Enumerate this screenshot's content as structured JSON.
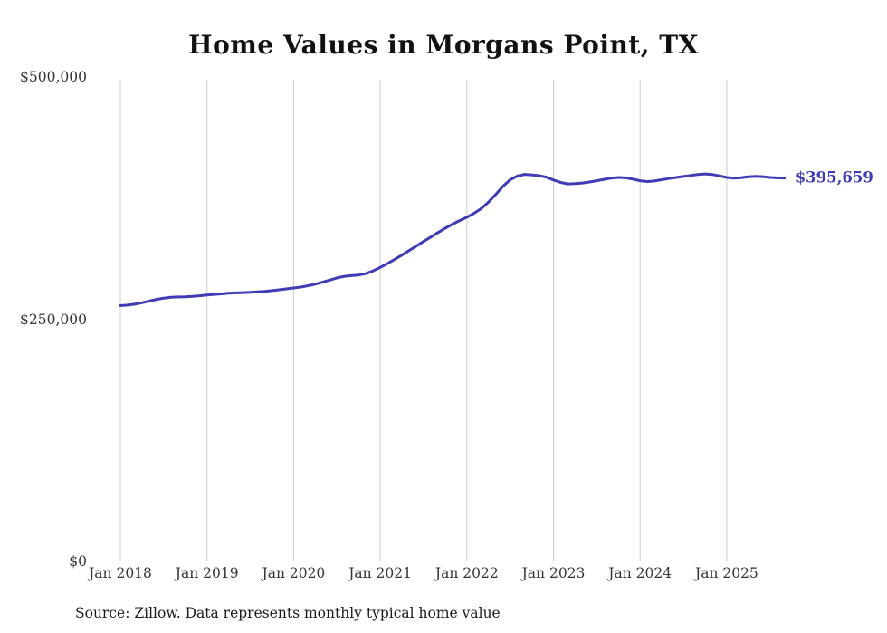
{
  "chart_data": {
    "type": "line",
    "title": "Home Values in Morgans Point, TX",
    "source_note": "Source: Zillow. Data represents monthly typical home value",
    "series_name": "Monthly typical home value",
    "x_start": "2018-01",
    "x_end": "2025-09",
    "x_interval": "monthly",
    "x_tick_labels": [
      "Jan 2018",
      "Jan 2019",
      "Jan 2020",
      "Jan 2021",
      "Jan 2022",
      "Jan 2023",
      "Jan 2024",
      "Jan 2025"
    ],
    "y_ticks": [
      {
        "value": 0,
        "label": "$0"
      },
      {
        "value": 250000,
        "label": "$250,000"
      },
      {
        "value": 500000,
        "label": "$500,000"
      }
    ],
    "ylim": [
      0,
      500000
    ],
    "grid": "vertical-only",
    "legend": "none",
    "end_label": "$395,659",
    "latest_value": 395659,
    "line_color": "#3f3cb4",
    "grid_color": "#cccccc",
    "values": [
      264000,
      264600,
      265500,
      267000,
      268800,
      270500,
      271800,
      272600,
      273000,
      273200,
      273600,
      274200,
      275000,
      275600,
      276200,
      276800,
      277200,
      277500,
      277800,
      278200,
      278800,
      279500,
      280400,
      281300,
      282200,
      283200,
      284600,
      286200,
      288200,
      290400,
      292600,
      294200,
      295000,
      295600,
      297000,
      299800,
      303500,
      307500,
      311800,
      316200,
      320800,
      325500,
      330200,
      334800,
      339400,
      343800,
      348000,
      351800,
      355200,
      359300,
      364300,
      370800,
      378800,
      387200,
      393800,
      397800,
      399400,
      399000,
      398100,
      396600,
      393600,
      391100,
      389600,
      389900,
      390600,
      391600,
      392900,
      394300,
      395600,
      396300,
      395900,
      394600,
      392900,
      392100,
      392600,
      393900,
      395100,
      396300,
      397300,
      398300,
      399300,
      399900,
      399300,
      397900,
      396300,
      395600,
      396100,
      396900,
      397500,
      397100,
      396300,
      395900,
      395659
    ]
  }
}
